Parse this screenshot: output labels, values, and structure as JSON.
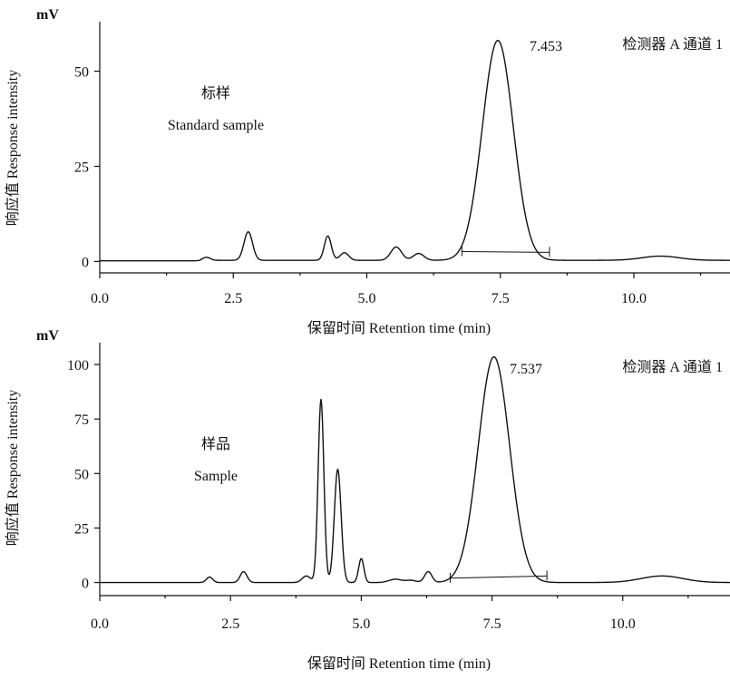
{
  "chart_data": [
    {
      "type": "line",
      "unit": "mV",
      "ylabel": "响应值 Response intensity",
      "xlabel": "保留时间 Retention time (min)",
      "xlim": [
        0,
        11.8
      ],
      "ylim": [
        -3,
        63
      ],
      "xticks": [
        "0.0",
        "2.5",
        "5.0",
        "7.5",
        "10.0"
      ],
      "xtick_values": [
        0,
        2.5,
        5,
        7.5,
        10
      ],
      "yticks": [
        "0",
        "25",
        "50"
      ],
      "ytick_values": [
        0,
        25,
        50
      ],
      "detector": "检测器 A 通道 1",
      "sample_cn": "标样",
      "sample_en": "Standard sample",
      "main_peak_label": "7.453",
      "baseline_level": 0.3,
      "peaks": [
        {
          "t": 2.0,
          "h": 0.8,
          "w": 0.07
        },
        {
          "t": 2.78,
          "h": 7.5,
          "w": 0.08
        },
        {
          "t": 4.27,
          "h": 6.4,
          "w": 0.065
        },
        {
          "t": 4.58,
          "h": 2.0,
          "w": 0.08
        },
        {
          "t": 5.55,
          "h": 3.5,
          "w": 0.1
        },
        {
          "t": 5.97,
          "h": 1.8,
          "w": 0.1
        },
        {
          "t": 7.453,
          "h": 57.8,
          "w": 0.29
        },
        {
          "t": 10.5,
          "h": 1.1,
          "w": 0.35
        }
      ],
      "integration_baseline": {
        "x": [
          6.78,
          8.42
        ],
        "y": [
          2.6,
          2.4
        ]
      }
    },
    {
      "type": "line",
      "unit": "mV",
      "ylabel": "响应值 Response intensity",
      "xlabel": "保留时间 Retention time (min)",
      "xlim": [
        0,
        12.05
      ],
      "ylim": [
        -6,
        110
      ],
      "xticks": [
        "0.0",
        "2.5",
        "5.0",
        "7.5",
        "10.0"
      ],
      "xtick_values": [
        0,
        2.5,
        5,
        7.5,
        10
      ],
      "yticks": [
        "0",
        "25",
        "50",
        "75",
        "100"
      ],
      "ytick_values": [
        0,
        25,
        50,
        75,
        100
      ],
      "detector": "检测器 A 通道 1",
      "sample_cn": "样品",
      "sample_en": "Sample",
      "main_peak_label": "7.537",
      "baseline_level": 0,
      "peaks": [
        {
          "t": 2.1,
          "h": 2.5,
          "w": 0.06
        },
        {
          "t": 2.75,
          "h": 5.0,
          "w": 0.065
        },
        {
          "t": 3.95,
          "h": 3.0,
          "w": 0.08
        },
        {
          "t": 4.23,
          "h": 84.0,
          "w": 0.055
        },
        {
          "t": 4.55,
          "h": 52.0,
          "w": 0.065
        },
        {
          "t": 5.0,
          "h": 11.0,
          "w": 0.05
        },
        {
          "t": 5.65,
          "h": 1.5,
          "w": 0.12
        },
        {
          "t": 5.95,
          "h": 1.0,
          "w": 0.1
        },
        {
          "t": 6.28,
          "h": 5.0,
          "w": 0.07
        },
        {
          "t": 7.537,
          "h": 103.5,
          "w": 0.3
        },
        {
          "t": 10.75,
          "h": 3.0,
          "w": 0.4
        }
      ],
      "integration_baseline": {
        "x": [
          6.7,
          8.55
        ],
        "y": [
          2.0,
          3.0
        ]
      }
    }
  ]
}
